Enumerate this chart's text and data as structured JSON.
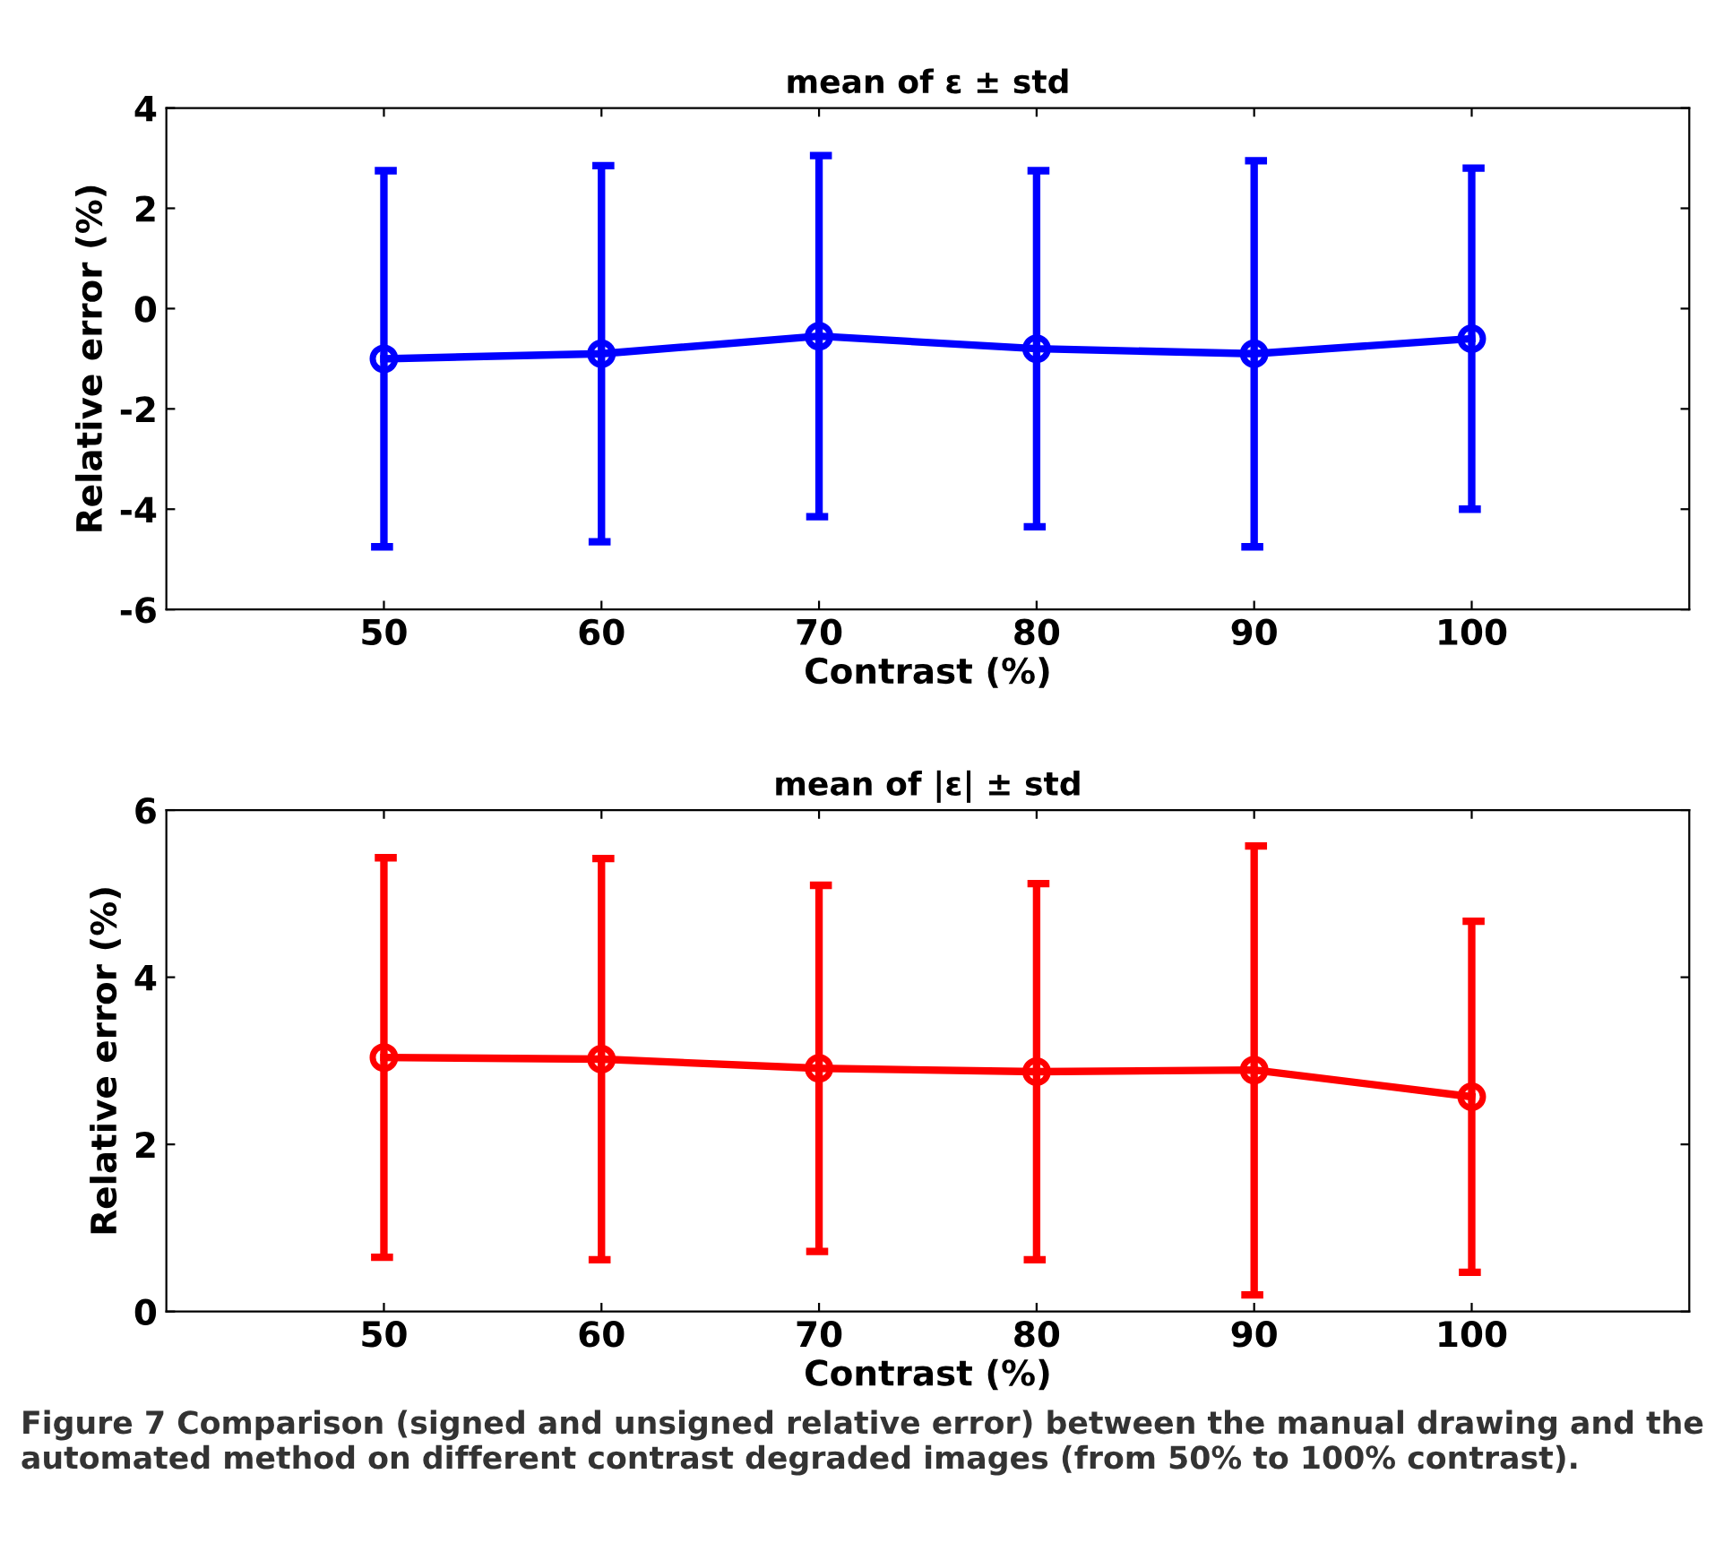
{
  "chart_data": [
    {
      "type": "line",
      "title": "mean of ε ± std",
      "xlabel": "Contrast (%)",
      "ylabel": "Relative error (%)",
      "x": [
        50,
        60,
        70,
        80,
        90,
        100
      ],
      "xlim": [
        40,
        110
      ],
      "xticks": [
        50,
        60,
        70,
        80,
        90,
        100
      ],
      "ylim": [
        -6,
        4
      ],
      "yticks": [
        -6,
        -4,
        -2,
        0,
        2,
        4
      ],
      "series": [
        {
          "color": "#0000ff",
          "values": [
            -1.0,
            -0.9,
            -0.55,
            -0.8,
            -0.9,
            -0.6
          ],
          "errors": [
            [
              -4.75,
              2.75
            ],
            [
              -4.65,
              2.85
            ],
            [
              -4.15,
              3.05
            ],
            [
              -4.35,
              2.75
            ],
            [
              -4.75,
              2.95
            ],
            [
              -4.0,
              2.8
            ]
          ]
        }
      ],
      "marker": "circle",
      "line_style": "solid",
      "grid": false,
      "legend": false
    },
    {
      "type": "line",
      "title": "mean of |ε| ± std",
      "xlabel": "Contrast (%)",
      "ylabel": "Relative error (%)",
      "x": [
        50,
        60,
        70,
        80,
        90,
        100
      ],
      "xlim": [
        40,
        110
      ],
      "xticks": [
        50,
        60,
        70,
        80,
        90,
        100
      ],
      "ylim": [
        0,
        6
      ],
      "yticks": [
        0,
        2,
        4,
        6
      ],
      "series": [
        {
          "color": "#ff0000",
          "values": [
            3.04,
            3.02,
            2.91,
            2.87,
            2.89,
            2.57
          ],
          "errors": [
            [
              0.65,
              5.43
            ],
            [
              0.62,
              5.42
            ],
            [
              0.72,
              5.1
            ],
            [
              0.62,
              5.12
            ],
            [
              0.2,
              5.57
            ],
            [
              0.47,
              4.67
            ]
          ]
        }
      ],
      "marker": "circle",
      "line_style": "solid",
      "grid": false,
      "legend": false,
      "annotations": [
        "Figure 7 Comparison (signed and unsigned relative error) between the manual drawing and the automated method on different contrast degraded images (from 50% to 100% contrast)."
      ]
    }
  ]
}
